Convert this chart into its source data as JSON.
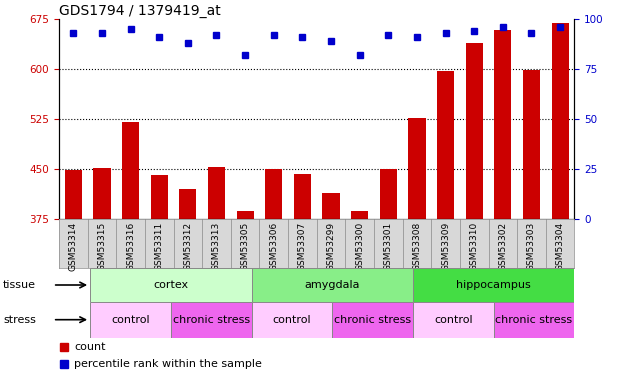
{
  "title": "GDS1794 / 1379419_at",
  "samples": [
    "GSM53314",
    "GSM53315",
    "GSM53316",
    "GSM53311",
    "GSM53312",
    "GSM53313",
    "GSM53305",
    "GSM53306",
    "GSM53307",
    "GSM53299",
    "GSM53300",
    "GSM53301",
    "GSM53308",
    "GSM53309",
    "GSM53310",
    "GSM53302",
    "GSM53303",
    "GSM53304"
  ],
  "counts": [
    449,
    452,
    521,
    441,
    420,
    453,
    388,
    451,
    443,
    415,
    388,
    451,
    527,
    597,
    638,
    658,
    598,
    668
  ],
  "percentiles": [
    93,
    93,
    95,
    91,
    88,
    92,
    82,
    92,
    91,
    89,
    82,
    92,
    91,
    93,
    94,
    96,
    93,
    96
  ],
  "ylim_left": [
    375,
    675
  ],
  "ylim_right": [
    0,
    100
  ],
  "yticks_left": [
    375,
    450,
    525,
    600,
    675
  ],
  "yticks_right": [
    0,
    25,
    50,
    75,
    100
  ],
  "bar_color": "#cc0000",
  "dot_color": "#0000cc",
  "bar_bottom": 375,
  "tissue_groups": [
    {
      "label": "cortex",
      "start": 0,
      "end": 6,
      "color": "#ccffcc"
    },
    {
      "label": "amygdala",
      "start": 6,
      "end": 12,
      "color": "#88ee88"
    },
    {
      "label": "hippocampus",
      "start": 12,
      "end": 18,
      "color": "#44dd44"
    }
  ],
  "stress_groups": [
    {
      "label": "control",
      "start": 0,
      "end": 3,
      "color": "#ffccff"
    },
    {
      "label": "chronic stress",
      "start": 3,
      "end": 6,
      "color": "#ee66ee"
    },
    {
      "label": "control",
      "start": 6,
      "end": 9,
      "color": "#ffccff"
    },
    {
      "label": "chronic stress",
      "start": 9,
      "end": 12,
      "color": "#ee66ee"
    },
    {
      "label": "control",
      "start": 12,
      "end": 15,
      "color": "#ffccff"
    },
    {
      "label": "chronic stress",
      "start": 15,
      "end": 18,
      "color": "#ee66ee"
    }
  ],
  "legend_count_color": "#cc0000",
  "legend_pct_color": "#0000cc",
  "title_fontsize": 10,
  "tick_fontsize": 7.5,
  "sample_fontsize": 6.5,
  "annot_fontsize": 8,
  "legend_fontsize": 8
}
